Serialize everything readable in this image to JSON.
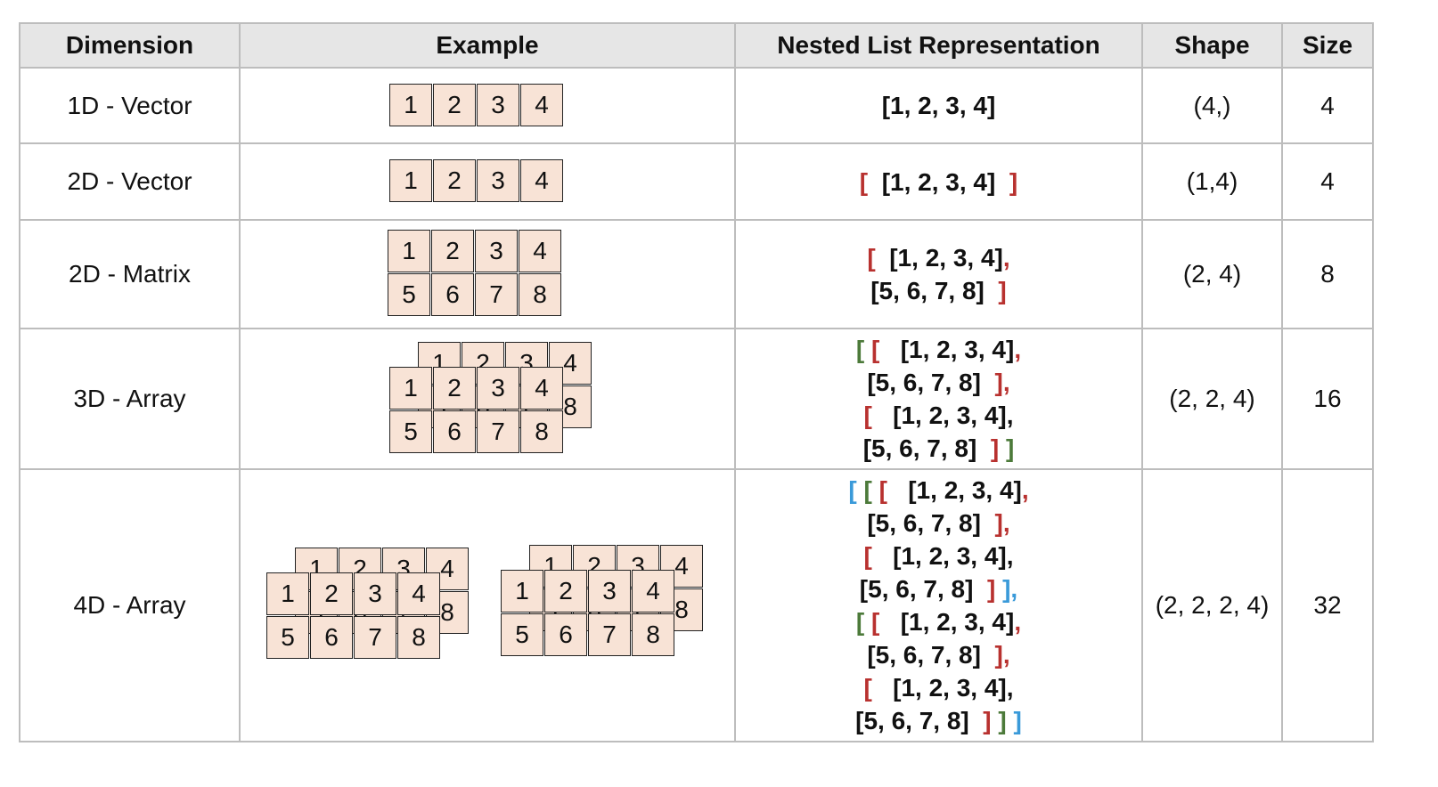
{
  "headers": {
    "dimension": "Dimension",
    "example": "Example",
    "nested": "Nested List Representation",
    "shape": "Shape",
    "size": "Size"
  },
  "rows": [
    {
      "dimension": "1D - Vector",
      "shape": "(4,)",
      "size": "4",
      "example_values": [
        "1",
        "2",
        "3",
        "4"
      ],
      "nested_lines": [
        [
          {
            "t": "[1, 2, 3, 4]",
            "c": "c-black"
          }
        ]
      ]
    },
    {
      "dimension": "2D - Vector",
      "shape": "(1,4)",
      "size": "4",
      "example_values": [
        "1",
        "2",
        "3",
        "4"
      ],
      "nested_lines": [
        [
          {
            "t": "[  ",
            "c": "c-red"
          },
          {
            "t": "[1, 2, 3, 4]",
            "c": "c-black"
          },
          {
            "t": "  ]",
            "c": "c-red"
          }
        ]
      ]
    },
    {
      "dimension": "2D - Matrix",
      "shape": "(2, 4)",
      "size": "8",
      "example_values": [
        [
          "1",
          "2",
          "3",
          "4"
        ],
        [
          "5",
          "6",
          "7",
          "8"
        ]
      ],
      "nested_lines": [
        [
          {
            "t": "[  ",
            "c": "c-red"
          },
          {
            "t": "[1, 2, 3, 4]",
            "c": "c-black"
          },
          {
            "t": ",",
            "c": "c-red"
          }
        ],
        [
          {
            "t": "[5, 6, 7, 8]",
            "c": "c-black"
          },
          {
            "t": "  ]",
            "c": "c-red"
          }
        ]
      ]
    },
    {
      "dimension": "3D - Array",
      "shape": "(2, 2, 4)",
      "size": "16",
      "example_values": [
        [
          "1",
          "2",
          "3",
          "4"
        ],
        [
          "5",
          "6",
          "7",
          "8"
        ]
      ],
      "nested_lines": [
        [
          {
            "t": "[ ",
            "c": "c-green"
          },
          {
            "t": "[   ",
            "c": "c-red"
          },
          {
            "t": "[1, 2, 3, 4]",
            "c": "c-black"
          },
          {
            "t": ",",
            "c": "c-red"
          }
        ],
        [
          {
            "t": "[5, 6, 7, 8]",
            "c": "c-black"
          },
          {
            "t": "  ],",
            "c": "c-red"
          }
        ],
        [
          {
            "t": "[   ",
            "c": "c-red"
          },
          {
            "t": "[1, 2, 3, 4],",
            "c": "c-black"
          }
        ],
        [
          {
            "t": "[5, 6, 7, 8]",
            "c": "c-black"
          },
          {
            "t": "  ] ",
            "c": "c-red"
          },
          {
            "t": "]",
            "c": "c-green"
          }
        ]
      ]
    },
    {
      "dimension": "4D - Array",
      "shape": "(2, 2, 2, 4)",
      "size": "32",
      "example_values": [
        [
          "1",
          "2",
          "3",
          "4"
        ],
        [
          "5",
          "6",
          "7",
          "8"
        ]
      ],
      "nested_lines": [
        [
          {
            "t": "[ ",
            "c": "c-blue"
          },
          {
            "t": "[ ",
            "c": "c-green"
          },
          {
            "t": "[   ",
            "c": "c-red"
          },
          {
            "t": "[1, 2, 3, 4]",
            "c": "c-black"
          },
          {
            "t": ",",
            "c": "c-red"
          }
        ],
        [
          {
            "t": "[5, 6, 7, 8]",
            "c": "c-black"
          },
          {
            "t": "  ],",
            "c": "c-red"
          }
        ],
        [
          {
            "t": "[   ",
            "c": "c-red"
          },
          {
            "t": "[1, 2, 3, 4],",
            "c": "c-black"
          }
        ],
        [
          {
            "t": "[5, 6, 7, 8]",
            "c": "c-black"
          },
          {
            "t": "  ] ",
            "c": "c-red"
          },
          {
            "t": "],",
            "c": "c-blue"
          }
        ],
        [
          {
            "t": "[ ",
            "c": "c-green"
          },
          {
            "t": "[   ",
            "c": "c-red"
          },
          {
            "t": "[1, 2, 3, 4]",
            "c": "c-black"
          },
          {
            "t": ",",
            "c": "c-red"
          }
        ],
        [
          {
            "t": "[5, 6, 7, 8]",
            "c": "c-black"
          },
          {
            "t": "  ],",
            "c": "c-red"
          }
        ],
        [
          {
            "t": "[   ",
            "c": "c-red"
          },
          {
            "t": "[1, 2, 3, 4],",
            "c": "c-black"
          }
        ],
        [
          {
            "t": "[5, 6, 7, 8]",
            "c": "c-black"
          },
          {
            "t": "  ] ",
            "c": "c-red"
          },
          {
            "t": "] ",
            "c": "c-green"
          },
          {
            "t": "]",
            "c": "c-blue"
          }
        ]
      ]
    }
  ]
}
